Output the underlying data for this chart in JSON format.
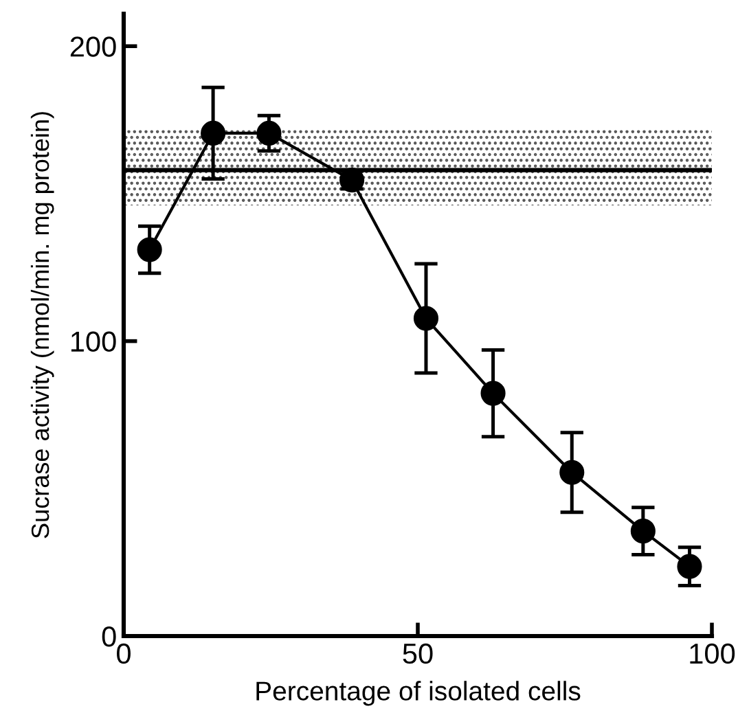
{
  "chart_data": {
    "type": "line",
    "xlabel": "Percentage of isolated cells",
    "ylabel": "Sucrase activity (nmol/min. mg protein)",
    "x": [
      4.4,
      15.2,
      24.7,
      38.8,
      51.4,
      62.8,
      76.2,
      88.3,
      96.2
    ],
    "series": [
      {
        "color": "#000000",
        "values": [
          131,
          170.5,
          170.5,
          154.6,
          107.7,
          82.3,
          55.5,
          35.6,
          23.6
        ],
        "errors": [
          8,
          15.5,
          6,
          3,
          18.5,
          14.7,
          13.5,
          8,
          6.5
        ]
      }
    ],
    "marker": "circle",
    "line_style": "solid",
    "xlim": [
      0,
      100
    ],
    "ylim": [
      0,
      211
    ],
    "xticks": [
      0,
      50,
      100
    ],
    "yticks": [
      0,
      100,
      200
    ],
    "grid": false,
    "ref_lines": [
      {
        "axis": "y",
        "value": 158,
        "color": "#000000",
        "line_style": "solid"
      }
    ],
    "bands": [
      {
        "axis": "y",
        "from": 146,
        "to": 172,
        "color": "#555555"
      }
    ]
  }
}
